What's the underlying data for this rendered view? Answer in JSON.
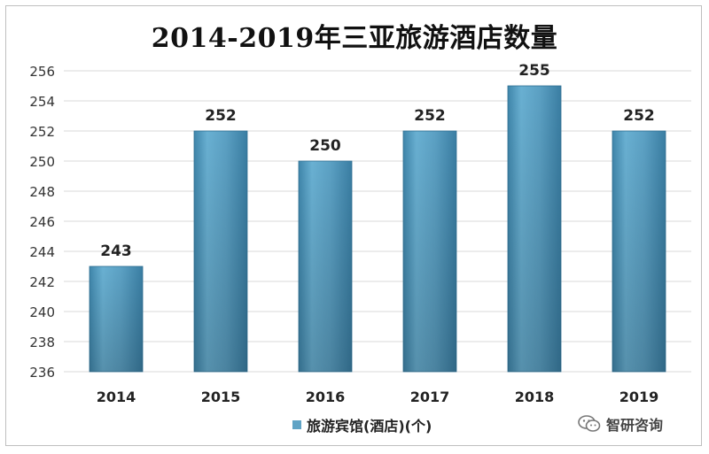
{
  "chart_data": {
    "type": "bar",
    "title": "2014-2019年三亚旅游酒店数量",
    "categories": [
      "2014",
      "2015",
      "2016",
      "2017",
      "2018",
      "2019"
    ],
    "series": [
      {
        "name": "旅游宾馆(酒店)(个)",
        "values": [
          243,
          252,
          250,
          252,
          255,
          252
        ]
      }
    ],
    "ylim": [
      236,
      256
    ],
    "yticks": [
      236,
      238,
      240,
      242,
      244,
      246,
      248,
      250,
      252,
      254,
      256
    ],
    "data_labels": true,
    "grid": true,
    "legend": "bottom",
    "bar_color": "#5fa3c5"
  },
  "watermark": {
    "text": "智研咨询",
    "icon": "wechat-icon"
  }
}
